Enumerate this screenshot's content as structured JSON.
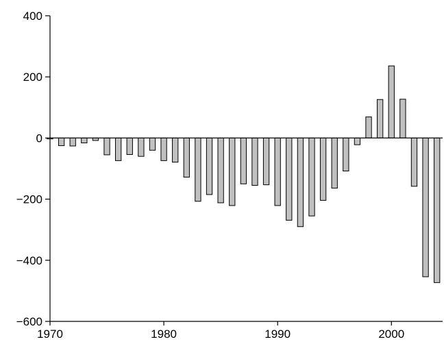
{
  "chart_data": {
    "type": "bar",
    "title": "",
    "xlabel": "",
    "ylabel": "",
    "x": [
      1970,
      1971,
      1972,
      1973,
      1974,
      1975,
      1976,
      1977,
      1978,
      1979,
      1980,
      1981,
      1982,
      1983,
      1984,
      1985,
      1986,
      1987,
      1988,
      1989,
      1990,
      1991,
      1992,
      1993,
      1994,
      1995,
      1996,
      1997,
      1998,
      1999,
      2000,
      2001,
      2002,
      2003,
      2004
    ],
    "values": [
      -3,
      -25,
      -26,
      -16,
      -8,
      -55,
      -74,
      -54,
      -60,
      -40,
      -74,
      -79,
      -128,
      -207,
      -185,
      -212,
      -221,
      -150,
      -155,
      -153,
      -221,
      -269,
      -290,
      -255,
      -204,
      -164,
      -108,
      -22,
      69,
      126,
      236,
      127,
      -158,
      -454,
      -473
    ],
    "xlim": [
      1970,
      2004.5
    ],
    "ylim": [
      -600,
      400
    ],
    "xticks": [
      1970,
      1980,
      1990,
      2000
    ],
    "yticks": [
      400,
      200,
      0,
      -200,
      -400,
      -600
    ],
    "xtick_labels": [
      "1970",
      "1980",
      "1990",
      "2000"
    ],
    "ytick_labels": [
      "400",
      "200",
      "0",
      "−200",
      "−400",
      "−600"
    ],
    "bar_color": "#c0c0c0",
    "edge_color": "#000000",
    "grid": false,
    "legend": "none"
  }
}
